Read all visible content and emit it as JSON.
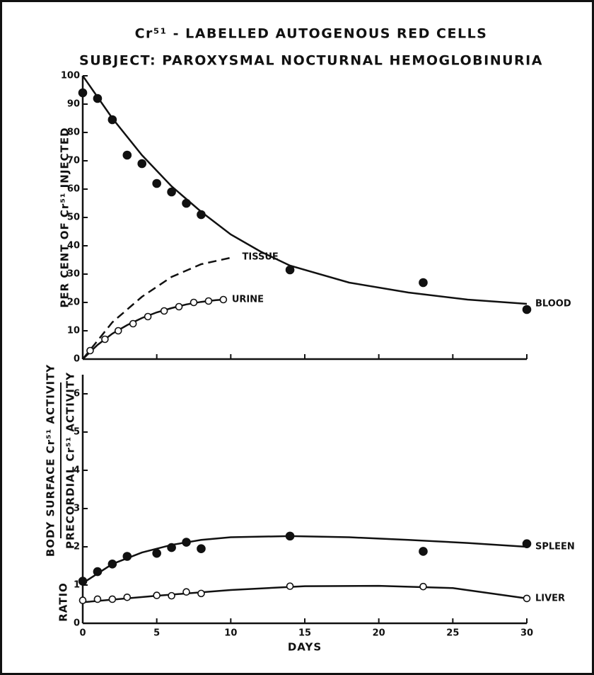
{
  "chart_data": [
    {
      "type": "line",
      "title": "Cr⁵¹ - LABELLED AUTOGENOUS RED CELLS",
      "subtitle": "SUBJECT: PAROXYSMAL NOCTURNAL HEMOGLOBINURIA",
      "ylabel": "PER CENT OF Cr⁵¹ INJECTED",
      "xlim": [
        0,
        30
      ],
      "ylim": [
        0,
        100
      ],
      "xticks": [
        0,
        5,
        10,
        15,
        20,
        25,
        30
      ],
      "xtick_labels": false,
      "yticks": [
        0,
        10,
        20,
        30,
        40,
        50,
        60,
        70,
        80,
        90,
        100
      ],
      "color": "#111",
      "series": [
        {
          "name": "BLOOD",
          "marker": "filled",
          "line": "solid",
          "points": {
            "x": [
              0,
              1,
              2,
              3,
              4,
              5,
              6,
              7,
              8,
              14,
              23,
              30
            ],
            "values": [
              94,
              92,
              84.5,
              72,
              69,
              62,
              59,
              55,
              51,
              31.5,
              27,
              17.5
            ]
          },
          "curve": {
            "x": [
              0,
              2,
              4,
              6,
              8,
              10,
              12,
              14,
              18,
              22,
              26,
              30
            ],
            "values": [
              100,
              85,
              72,
              61,
              52,
              44,
              38,
              33,
              27,
              23.5,
              21,
              19.5
            ]
          }
        },
        {
          "name": "TISSUE",
          "line": "dashed",
          "curve": {
            "x": [
              0,
              2,
              4,
              6,
              8,
              10.2
            ],
            "values": [
              0,
              13,
              22,
              29,
              33.5,
              36
            ]
          }
        },
        {
          "name": "URINE",
          "marker": "open",
          "line": "solid",
          "points": {
            "x": [
              0.5,
              1.5,
              2.4,
              3.4,
              4.4,
              5.5,
              6.5,
              7.5,
              8.5,
              9.5
            ],
            "values": [
              3,
              7,
              10,
              12.5,
              15,
              17,
              18.5,
              20,
              20.5,
              21
            ]
          },
          "curve": {
            "x": [
              0,
              1,
              2,
              3,
              4,
              5,
              6,
              7,
              8,
              9,
              9.5
            ],
            "values": [
              0,
              5,
              9,
              12,
              14.5,
              16.5,
              18,
              19.3,
              20.2,
              20.8,
              21
            ]
          }
        }
      ]
    },
    {
      "type": "line",
      "ylabel": "RATIO",
      "ylabel_fraction": [
        "BODY SURFACE Cr⁵¹ ACTIVITY",
        "PRECORDIAL Cr⁵¹ ACTIVITY"
      ],
      "xlabel": "DAYS",
      "xlim": [
        0,
        30
      ],
      "ylim": [
        0,
        6.5
      ],
      "xticks": [
        0,
        5,
        10,
        15,
        20,
        25,
        30
      ],
      "xtick_labels": true,
      "yticks": [
        0,
        1,
        2,
        3,
        4,
        5,
        6
      ],
      "color": "#111",
      "series": [
        {
          "name": "SPLEEN",
          "marker": "filled",
          "line": "solid",
          "points": {
            "x": [
              0,
              1,
              2,
              3,
              5,
              6,
              7,
              8,
              14,
              23,
              30
            ],
            "values": [
              1.1,
              1.35,
              1.55,
              1.75,
              1.83,
              1.98,
              2.12,
              1.95,
              2.28,
              1.88,
              2.08
            ]
          },
          "curve": {
            "x": [
              0,
              2,
              4,
              6,
              8,
              10,
              14,
              18,
              22,
              26,
              30
            ],
            "values": [
              1.05,
              1.55,
              1.85,
              2.05,
              2.18,
              2.25,
              2.28,
              2.25,
              2.18,
              2.1,
              2.0
            ]
          }
        },
        {
          "name": "LIVER",
          "marker": "open",
          "line": "solid",
          "points": {
            "x": [
              0,
              1,
              2,
              3,
              5,
              6,
              7,
              8,
              14,
              23,
              30
            ],
            "values": [
              0.6,
              0.63,
              0.63,
              0.68,
              0.73,
              0.72,
              0.82,
              0.78,
              0.97,
              0.96,
              0.65
            ]
          },
          "curve": {
            "x": [
              0,
              5,
              10,
              15,
              20,
              25,
              30
            ],
            "values": [
              0.55,
              0.72,
              0.87,
              0.97,
              0.98,
              0.92,
              0.65
            ]
          }
        }
      ]
    }
  ]
}
